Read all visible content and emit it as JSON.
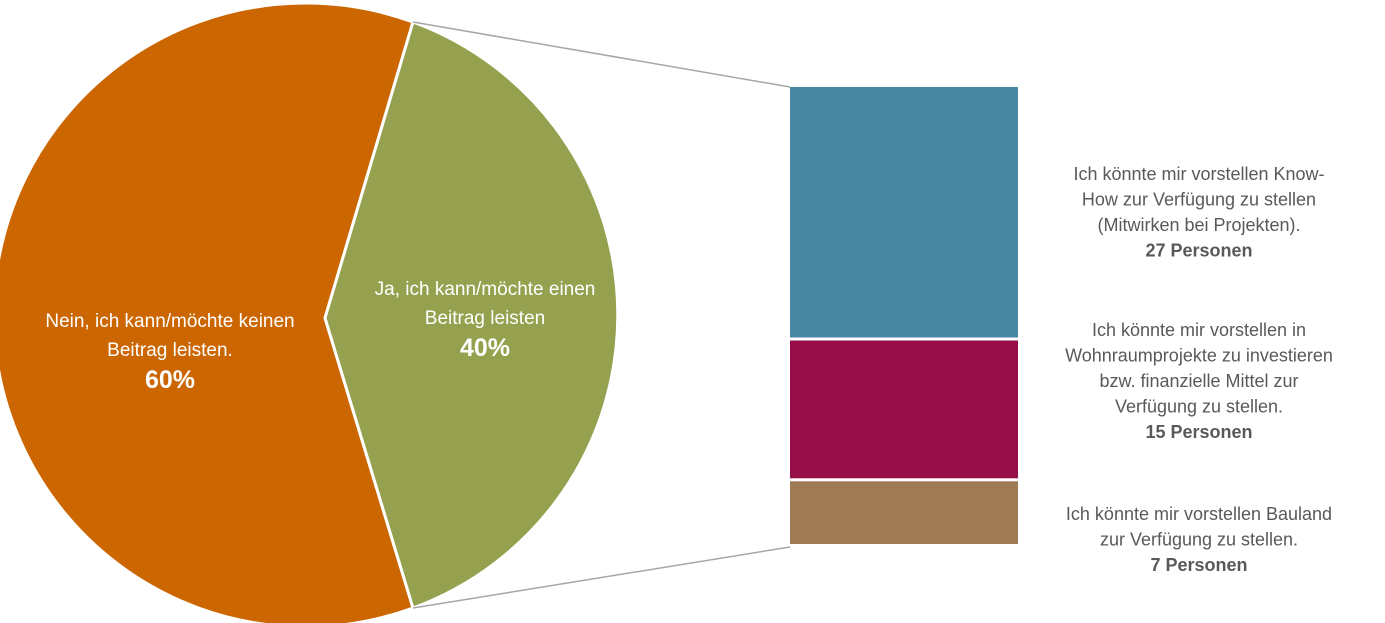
{
  "chart_data": {
    "type": "pie",
    "slices": [
      {
        "label_lines": [
          "Nein, ich kann/möchte keinen",
          "Beitrag leisten."
        ],
        "value": 60,
        "value_label": "60%",
        "color": "#CC6600"
      },
      {
        "label_lines": [
          "Ja, ich kann/möchte einen",
          "Beitrag leisten"
        ],
        "value": 40,
        "value_label": "40%",
        "color": "#96A14F"
      }
    ],
    "breakdown": {
      "of_slice": 1,
      "items": [
        {
          "label_lines": [
            "Ich könnte mir vorstellen Know-",
            "How zur Verfügung zu stellen",
            "(Mitwirken bei Projekten)."
          ],
          "value": 27,
          "value_label": "27 Personen",
          "color": "#4986A1"
        },
        {
          "label_lines": [
            "Ich könnte mir vorstellen in",
            "Wohnraumprojekte zu investieren",
            "bzw. finanzielle Mittel zur",
            "Verfügung zu stellen."
          ],
          "value": 15,
          "value_label": "15 Personen",
          "color": "#960F48"
        },
        {
          "label_lines": [
            "Ich könnte mir vorstellen Bauland",
            "zur Verfügung zu stellen."
          ],
          "value": 7,
          "value_label": "7 Personen",
          "color": "#9E7A55"
        }
      ]
    }
  }
}
